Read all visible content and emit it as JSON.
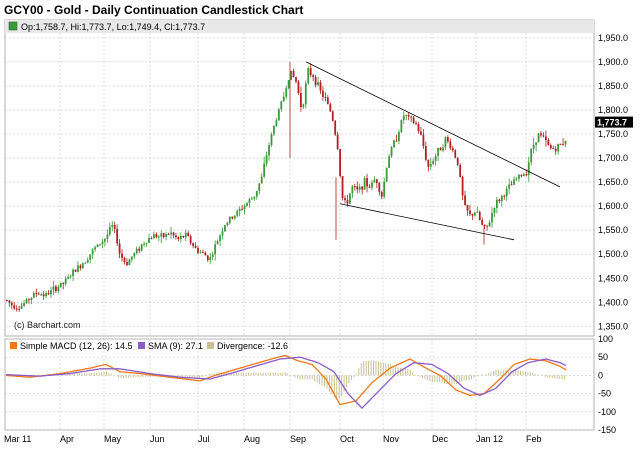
{
  "chart_title": "GCY00 - Gold - Daily Continuation Candlestick Chart",
  "ohlc_label": "Op:1,758.7, Hi:1,773.7, Lo:1,749.4, Cl:1,773.7",
  "last_price": "1,773.7",
  "watermark": "(c) Barchart.com",
  "macd_legend": {
    "macd": "Simple MACD (12, 26): 14.5",
    "sma": "SMA (9): 27.1",
    "divergence": "Divergence: -12.6"
  },
  "colors": {
    "up": "#3a9a3a",
    "down": "#b02020",
    "grid": "#c8c8c8",
    "macd": "#f07818",
    "sma": "#8a5cc8",
    "divergence": "#c8c090",
    "price_tag": "#000000"
  },
  "chart_data": [
    {
      "type": "candlestick",
      "x": [
        "Mar 11",
        "Apr",
        "May",
        "Jun",
        "Jul",
        "Aug",
        "Sep",
        "Oct",
        "Nov",
        "Dec",
        "Jan 12",
        "Feb"
      ],
      "y_ticks": [
        "1,950.0",
        "1,900.0",
        "1,850.0",
        "1,800.0",
        "1,750.0",
        "1,700.0",
        "1,650.0",
        "1,600.0",
        "1,550.0",
        "1,500.0",
        "1,450.0",
        "1,400.0",
        "1,350.0"
      ],
      "ylim": [
        1330,
        1960
      ],
      "grid": true,
      "last": {
        "open": 1758.7,
        "high": 1773.7,
        "low": 1749.4,
        "close": 1773.7
      },
      "key_points": [
        {
          "x": "Mar 11",
          "y": 1410
        },
        {
          "x": "Apr",
          "y": 1430
        },
        {
          "x": "May",
          "y": 1560
        },
        {
          "x": "May",
          "y": 1480
        },
        {
          "x": "Jun",
          "y": 1540
        },
        {
          "x": "Jul",
          "y": 1490
        },
        {
          "x": "Aug",
          "y": 1650
        },
        {
          "x": "Sep",
          "y": 1900
        },
        {
          "x": "Oct",
          "y": 1620
        },
        {
          "x": "Nov",
          "y": 1790
        },
        {
          "x": "Dec",
          "y": 1700
        },
        {
          "x": "Jan 12",
          "y": 1540
        },
        {
          "x": "Feb",
          "y": 1760
        }
      ],
      "trendlines": [
        {
          "from": {
            "x": "Sep",
            "y": 1900
          },
          "to": {
            "x": "Feb",
            "y": 1640
          }
        },
        {
          "from": {
            "x": "Oct",
            "y": 1605
          },
          "to": {
            "x": "Jan 12",
            "y": 1530
          }
        }
      ]
    },
    {
      "type": "line",
      "series": [
        {
          "name": "Simple MACD (12, 26)",
          "last": 14.5
        },
        {
          "name": "SMA (9)",
          "last": 27.1
        },
        {
          "name": "Divergence",
          "last": -12.6
        }
      ],
      "y_ticks": [
        "100",
        "50",
        "0",
        "-50",
        "-100",
        "-150"
      ],
      "ylim": [
        -150,
        100
      ]
    }
  ]
}
